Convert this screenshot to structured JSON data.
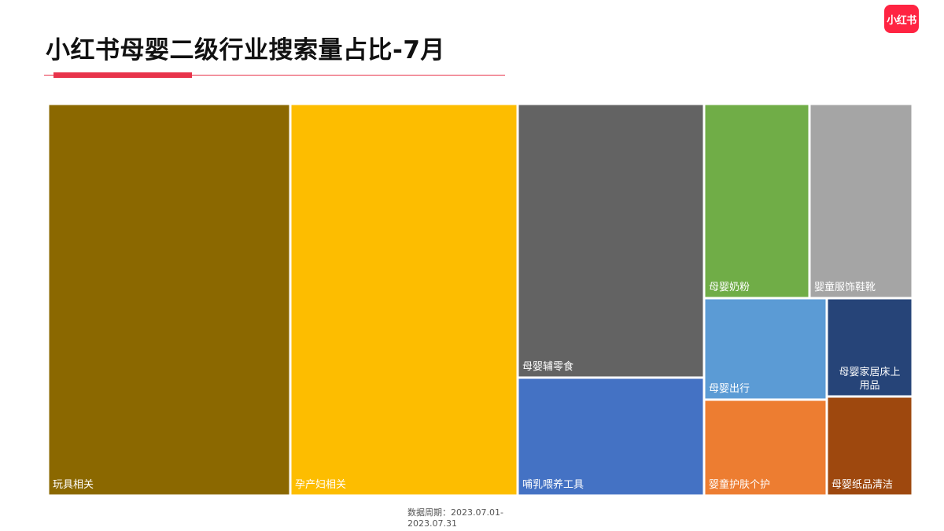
{
  "header": {
    "title": "小红书母婴二级行业搜索量占比-7月",
    "logo_text": "小红书"
  },
  "footer": {
    "source_line1": "数据周期：2023.07.01-",
    "source_line2": "2023.07.31"
  },
  "chart_data": {
    "type": "treemap",
    "title": "小红书母婴二级行业搜索量占比-7月",
    "labels_shown": true,
    "tiles": [
      {
        "label": "玩具相关",
        "lines": [
          "玩具相关"
        ],
        "share": 0.28,
        "color": "#8b6800"
      },
      {
        "label": "孕产妇相关",
        "lines": [
          "孕产妇相关"
        ],
        "share": 0.264,
        "color": "#fdbd00"
      },
      {
        "label": "母婴辅零食",
        "lines": [
          "母婴辅零食"
        ],
        "share": 0.149,
        "color": "#636363"
      },
      {
        "label": "哺乳喂养工具",
        "lines": [
          "哺乳喂养工具"
        ],
        "share": 0.064,
        "color": "#4472c4"
      },
      {
        "label": "母婴奶粉",
        "lines": [
          "母婴奶粉"
        ],
        "share": 0.054,
        "color": "#70ad47"
      },
      {
        "label": "婴童服饰鞋靴",
        "lines": [
          "婴童服饰鞋靴"
        ],
        "share": 0.054,
        "color": "#a5a5a5"
      },
      {
        "label": "母婴出行",
        "lines": [
          "母婴出行"
        ],
        "share": 0.034,
        "color": "#5b9bd5"
      },
      {
        "label": "母婴家居床上用品",
        "lines": [
          "母婴家居床上",
          "用品"
        ],
        "share": 0.023,
        "color": "#264478"
      },
      {
        "label": "婴童护肤个护",
        "lines": [
          "婴童护肤个护"
        ],
        "share": 0.031,
        "color": "#ed7d31"
      },
      {
        "label": "母婴纸品清洁",
        "lines": [
          "母婴纸品清洁"
        ],
        "share": 0.027,
        "color": "#9e480e"
      }
    ]
  }
}
